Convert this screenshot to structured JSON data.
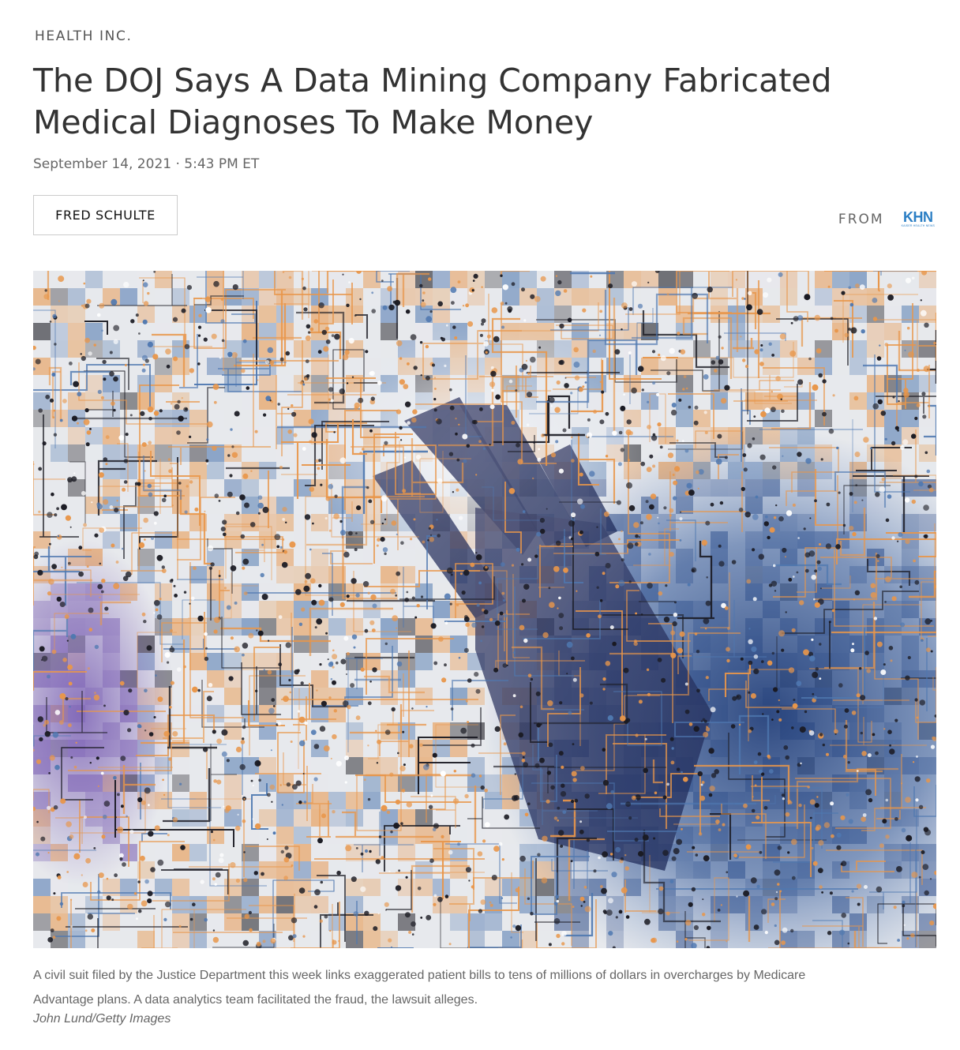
{
  "article": {
    "section": "HEALTH INC.",
    "headline": "The DOJ Says A Data Mining Company Fabricated Medical Diagnoses To Make Money",
    "dateline": "September 14, 2021 · 5:43 PM ET",
    "author": "FRED SCHULTE",
    "source_label": "FROM",
    "source_logo": {
      "mark": "KHN",
      "subtitle": "KAISER HEALTH NEWS",
      "color": "#2a7ec4"
    }
  },
  "image": {
    "icon": "circuit-board-hand-photo",
    "palette": {
      "orange": "#e8964a",
      "navy": "#2c4a86",
      "blue": "#4f78b0",
      "purple": "#7a5fb4",
      "dark": "#1a1a22",
      "light": "#e6e9ee"
    },
    "caption": "A civil suit filed by the Justice Department this week links exaggerated patient bills to tens of millions of dollars in overcharges by Medicare Advantage plans. A data analytics team facilitated the fraud, the lawsuit alleges.",
    "credit": "John Lund/Getty Images"
  }
}
